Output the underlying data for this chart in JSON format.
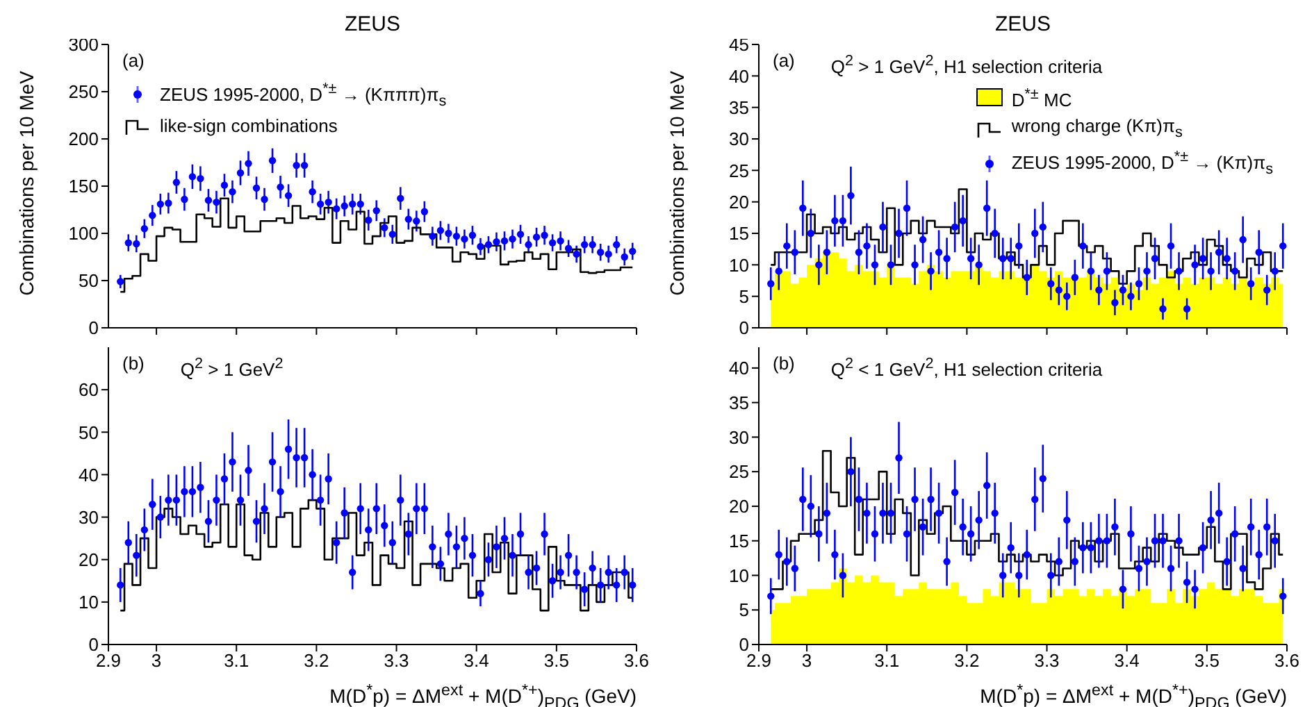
{
  "chart_data": [
    {
      "type": "scatter",
      "title": "ZEUS",
      "ylabel": "Combinations per 10 MeV",
      "annotations": [
        "(a)"
      ],
      "legend": "top left",
      "tick_labels": "y",
      "xlim": [
        2.94,
        3.6
      ],
      "xticks": [
        3,
        3.1,
        3.2,
        3.3,
        3.4,
        3.5,
        3.6
      ],
      "ylim": [
        0,
        300
      ],
      "yticks": [
        0,
        50,
        100,
        150,
        200,
        250,
        300
      ],
      "x": [
        2.955,
        2.965,
        2.975,
        2.985,
        2.995,
        3.005,
        3.015,
        3.025,
        3.035,
        3.045,
        3.055,
        3.065,
        3.075,
        3.085,
        3.095,
        3.105,
        3.115,
        3.125,
        3.135,
        3.145,
        3.155,
        3.165,
        3.175,
        3.185,
        3.195,
        3.205,
        3.215,
        3.225,
        3.235,
        3.245,
        3.255,
        3.265,
        3.275,
        3.285,
        3.295,
        3.305,
        3.315,
        3.325,
        3.335,
        3.345,
        3.355,
        3.365,
        3.375,
        3.385,
        3.395,
        3.405,
        3.415,
        3.425,
        3.435,
        3.445,
        3.455,
        3.465,
        3.475,
        3.485,
        3.495,
        3.505,
        3.515,
        3.525,
        3.535,
        3.545,
        3.555,
        3.565,
        3.575,
        3.585,
        3.595
      ],
      "series": [
        {
          "name": "ZEUS 1995-2000, D$^{*±}$ → (Kπππ)π$_{s}$",
          "marker": "circle",
          "color": "#0000ff",
          "values": [
            49,
            90,
            89,
            105,
            119,
            131,
            132,
            154,
            136,
            160,
            158,
            135,
            133,
            151,
            144,
            164,
            174,
            148,
            136,
            177,
            149,
            140,
            172,
            172,
            144,
            131,
            133,
            126,
            129,
            131,
            131,
            114,
            124,
            106,
            99,
            137,
            115,
            113,
            123,
            97,
            103,
            100,
            97,
            94,
            98,
            86,
            88,
            91,
            92,
            94,
            99,
            88,
            96,
            98,
            90,
            92,
            84,
            78,
            88,
            88,
            80,
            78,
            88,
            75,
            81
          ],
          "errors": [
            7,
            9,
            9,
            10,
            11,
            11,
            11,
            12,
            12,
            13,
            13,
            12,
            12,
            12,
            12,
            13,
            13,
            12,
            12,
            13,
            12,
            12,
            13,
            13,
            12,
            11,
            12,
            11,
            11,
            11,
            11,
            11,
            11,
            10,
            10,
            12,
            11,
            11,
            11,
            10,
            10,
            10,
            10,
            10,
            10,
            9,
            9,
            10,
            10,
            10,
            10,
            9,
            10,
            10,
            9,
            10,
            9,
            9,
            9,
            9,
            9,
            9,
            9,
            9,
            9
          ]
        },
        {
          "name": "like-sign combinations",
          "type": "step",
          "color": "#000000",
          "values": [
            38,
            52,
            55,
            78,
            71,
            97,
            106,
            104,
            91,
            91,
            120,
            116,
            107,
            137,
            106,
            118,
            102,
            102,
            113,
            113,
            116,
            111,
            129,
            116,
            118,
            115,
            127,
            90,
            113,
            104,
            123,
            89,
            97,
            111,
            118,
            90,
            92,
            106,
            99,
            99,
            85,
            85,
            70,
            80,
            78,
            73,
            87,
            87,
            67,
            70,
            71,
            80,
            73,
            78,
            62,
            80,
            80,
            83,
            59,
            58,
            59,
            61,
            61,
            64,
            64
          ]
        }
      ]
    },
    {
      "type": "scatter",
      "title": "ZEUS",
      "ylabel": "Combinations per 10 MeV",
      "annotations": [
        "(a)",
        "Q$^{2}$ > 1 GeV$^{2}$, H1 selection criteria"
      ],
      "legend": "top right",
      "tick_labels": "y",
      "xlim": [
        2.94,
        3.6
      ],
      "xticks": [
        3,
        3.1,
        3.2,
        3.3,
        3.4,
        3.5,
        3.6
      ],
      "ylim": [
        0,
        45
      ],
      "yticks": [
        0,
        5,
        10,
        15,
        20,
        25,
        30,
        35,
        40,
        45
      ],
      "x": [
        2.955,
        2.965,
        2.975,
        2.985,
        2.995,
        3.005,
        3.015,
        3.025,
        3.035,
        3.045,
        3.055,
        3.065,
        3.075,
        3.085,
        3.095,
        3.105,
        3.115,
        3.125,
        3.135,
        3.145,
        3.155,
        3.165,
        3.175,
        3.185,
        3.195,
        3.205,
        3.215,
        3.225,
        3.235,
        3.245,
        3.255,
        3.265,
        3.275,
        3.285,
        3.295,
        3.305,
        3.315,
        3.325,
        3.335,
        3.345,
        3.355,
        3.365,
        3.375,
        3.385,
        3.395,
        3.405,
        3.415,
        3.425,
        3.435,
        3.445,
        3.455,
        3.465,
        3.475,
        3.485,
        3.495,
        3.505,
        3.515,
        3.525,
        3.535,
        3.545,
        3.555,
        3.565,
        3.575,
        3.585,
        3.595
      ],
      "series": [
        {
          "name": "D$^{*±}$ MC",
          "type": "area",
          "color": "#ffff00",
          "values": [
            7,
            9,
            9,
            7,
            8,
            10,
            11,
            12,
            12,
            11,
            9,
            10,
            9,
            9,
            8,
            10,
            8,
            8,
            7,
            9,
            10,
            9,
            8,
            9,
            9,
            9,
            10,
            9,
            8,
            9,
            9,
            8,
            8,
            10,
            9,
            8,
            9,
            8,
            8,
            8,
            9,
            8,
            7,
            8,
            6,
            7,
            6,
            8,
            7,
            8,
            9,
            7,
            8,
            7,
            8,
            8,
            7,
            8,
            7,
            8,
            7,
            8,
            7,
            8,
            7
          ]
        },
        {
          "name": "wrong charge (Kπ)π$_{s}$",
          "type": "step",
          "color": "#000000",
          "values": [
            10,
            12,
            12,
            12,
            12,
            18,
            15,
            16,
            15,
            16,
            14,
            15,
            16,
            14,
            12,
            19,
            10,
            15,
            17,
            15,
            17,
            16,
            16,
            15,
            22,
            12,
            15,
            14,
            15,
            11,
            12,
            10,
            8,
            10,
            13,
            10,
            15,
            17,
            17,
            13,
            12,
            13,
            11,
            9,
            7,
            9,
            13,
            15,
            13,
            10,
            8,
            9,
            11,
            12,
            10,
            14,
            13,
            10,
            9,
            8,
            11,
            10,
            12,
            9,
            9
          ]
        },
        {
          "name": "ZEUS 1995-2000, D$^{*±}$ → (Kπ)π$_{s}$",
          "marker": "circle",
          "color": "#0000ff",
          "values": [
            7,
            9,
            13,
            12,
            19,
            15,
            10,
            12,
            17,
            17,
            21,
            12,
            13,
            10,
            16,
            10,
            15,
            19,
            10,
            14,
            9,
            12,
            11,
            16,
            17,
            11,
            10,
            19,
            15,
            11,
            11,
            13,
            8,
            15,
            16,
            7,
            6,
            5,
            8,
            13,
            9,
            6,
            9,
            4,
            6,
            5,
            7,
            9,
            11,
            3,
            13,
            9,
            3,
            10,
            11,
            9,
            12,
            11,
            9,
            14,
            7,
            12,
            6,
            9,
            13
          ],
          "errors": [
            2.6,
            3,
            3.6,
            3.5,
            4.4,
            3.9,
            3.2,
            3.5,
            4.1,
            4.1,
            4.6,
            3.5,
            3.6,
            3.2,
            4,
            3.2,
            3.9,
            4.4,
            3.2,
            3.7,
            3,
            3.5,
            3.3,
            4,
            4.1,
            3.3,
            3.2,
            4.4,
            3.9,
            3.3,
            3.3,
            3.6,
            2.8,
            3.9,
            4,
            2.6,
            2.4,
            2.2,
            2.8,
            3.6,
            3,
            2.4,
            3,
            2,
            2.4,
            2.2,
            2.6,
            3,
            3.3,
            1.7,
            3.6,
            3,
            1.7,
            3.2,
            3.3,
            3,
            3.5,
            3.3,
            3,
            3.7,
            2.6,
            3.5,
            2.4,
            3,
            3.6
          ]
        }
      ]
    },
    {
      "type": "scatter",
      "annotations": [
        "(b)",
        "Q$^{2}$ > 1 GeV$^{2}$"
      ],
      "xlabel": "M(D$^{*}$p) = ΔM$^{ext}$ + M(D$^{*+}$)$_{PDG}$ (GeV)",
      "xlim": [
        2.94,
        3.6
      ],
      "xticks": [
        {
          "value": 2.94,
          "label": "2.9"
        },
        3,
        3.1,
        3.2,
        3.3,
        3.4,
        3.5,
        3.6
      ],
      "ylim": [
        0,
        70
      ],
      "yticks": [
        0,
        10,
        20,
        30,
        40,
        50,
        60
      ],
      "x": [
        2.955,
        2.965,
        2.975,
        2.985,
        2.995,
        3.005,
        3.015,
        3.025,
        3.035,
        3.045,
        3.055,
        3.065,
        3.075,
        3.085,
        3.095,
        3.105,
        3.115,
        3.125,
        3.135,
        3.145,
        3.155,
        3.165,
        3.175,
        3.185,
        3.195,
        3.205,
        3.215,
        3.225,
        3.235,
        3.245,
        3.255,
        3.265,
        3.275,
        3.285,
        3.295,
        3.305,
        3.315,
        3.325,
        3.335,
        3.345,
        3.355,
        3.365,
        3.375,
        3.385,
        3.395,
        3.405,
        3.415,
        3.425,
        3.435,
        3.445,
        3.455,
        3.465,
        3.475,
        3.485,
        3.495,
        3.505,
        3.515,
        3.525,
        3.535,
        3.545,
        3.555,
        3.565,
        3.575,
        3.585,
        3.595
      ],
      "series": [
        {
          "type": "step",
          "color": "#000000",
          "values": [
            8,
            19,
            14,
            25,
            18,
            30,
            32,
            30,
            26,
            28,
            26,
            23,
            24,
            33,
            23,
            33,
            21,
            20,
            31,
            23,
            30,
            31,
            23,
            32,
            34,
            32,
            20,
            25,
            25,
            31,
            21,
            24,
            14,
            21,
            19,
            18,
            29,
            14,
            19,
            19,
            18,
            15,
            18,
            19,
            11,
            15,
            26,
            17,
            24,
            12,
            21,
            21,
            13,
            8,
            23,
            15,
            14,
            14,
            8,
            14,
            10,
            14,
            17,
            17,
            11
          ]
        },
        {
          "marker": "circle",
          "color": "#0000ff",
          "values": [
            14,
            24,
            21,
            27,
            33,
            30,
            34,
            34,
            36,
            36,
            37,
            29,
            34,
            39,
            43,
            34,
            41,
            29,
            32,
            43,
            36,
            46,
            44,
            44,
            40,
            34,
            39,
            24,
            31,
            17,
            32,
            27,
            32,
            28,
            24,
            34,
            26,
            32,
            32,
            23,
            19,
            26,
            23,
            25,
            21,
            12,
            20,
            23,
            25,
            21,
            26,
            17,
            18,
            26,
            15,
            17,
            21,
            17,
            13,
            18,
            14,
            17,
            14,
            17,
            14
          ],
          "errors": [
            4,
            5,
            5,
            5,
            6,
            5,
            6,
            6,
            6,
            6,
            6,
            5,
            6,
            6,
            7,
            6,
            6,
            5,
            6,
            7,
            6,
            7,
            7,
            7,
            6,
            6,
            6,
            5,
            6,
            4,
            6,
            5,
            6,
            5,
            5,
            6,
            5,
            6,
            6,
            5,
            4,
            5,
            5,
            5,
            5,
            3,
            4,
            5,
            5,
            5,
            5,
            4,
            4,
            5,
            4,
            4,
            5,
            4,
            4,
            4,
            4,
            4,
            4,
            4,
            4
          ]
        }
      ]
    },
    {
      "type": "scatter",
      "annotations": [
        "(b)",
        "Q$^{2}$ < 1 GeV$^{2}$, H1 selection criteria"
      ],
      "xlabel": "M(D$^{*}$p) = ΔM$^{ext}$ + M(D$^{*+}$)$_{PDG}$ (GeV)",
      "xlim": [
        2.94,
        3.6
      ],
      "xticks": [
        {
          "value": 2.94,
          "label": "2.9"
        },
        3,
        3.1,
        3.2,
        3.3,
        3.4,
        3.5,
        3.6
      ],
      "ylim": [
        0,
        43
      ],
      "yticks": [
        0,
        5,
        10,
        15,
        20,
        25,
        30,
        35,
        40
      ],
      "x": [
        2.955,
        2.965,
        2.975,
        2.985,
        2.995,
        3.005,
        3.015,
        3.025,
        3.035,
        3.045,
        3.055,
        3.065,
        3.075,
        3.085,
        3.095,
        3.105,
        3.115,
        3.125,
        3.135,
        3.145,
        3.155,
        3.165,
        3.175,
        3.185,
        3.195,
        3.205,
        3.215,
        3.225,
        3.235,
        3.245,
        3.255,
        3.265,
        3.275,
        3.285,
        3.295,
        3.305,
        3.315,
        3.325,
        3.335,
        3.345,
        3.355,
        3.365,
        3.375,
        3.385,
        3.395,
        3.405,
        3.415,
        3.425,
        3.435,
        3.445,
        3.455,
        3.465,
        3.475,
        3.485,
        3.495,
        3.505,
        3.515,
        3.525,
        3.535,
        3.545,
        3.555,
        3.565,
        3.575,
        3.585,
        3.595
      ],
      "series": [
        {
          "type": "area",
          "color": "#ffff00",
          "values": [
            5,
            6,
            6,
            7,
            7,
            8,
            8,
            8,
            9,
            11,
            9,
            10,
            9,
            10,
            9,
            9,
            7,
            8,
            8,
            9,
            8,
            8,
            8,
            9,
            7,
            6,
            6,
            8,
            7,
            9,
            9,
            8,
            8,
            6,
            6,
            8,
            7,
            8,
            8,
            7,
            8,
            7,
            8,
            7,
            8,
            7,
            8,
            8,
            6,
            6,
            8,
            6,
            8,
            7,
            8,
            9,
            8,
            8,
            7,
            8,
            8,
            7,
            6,
            6,
            8
          ]
        },
        {
          "type": "step",
          "color": "#000000",
          "values": [
            8,
            8,
            12,
            15,
            16,
            16,
            18,
            28,
            22,
            20,
            27,
            13,
            21,
            21,
            25,
            16,
            21,
            19,
            10,
            18,
            16,
            19,
            20,
            15,
            15,
            13,
            15,
            15,
            16,
            12,
            13,
            12,
            13,
            12,
            13,
            12,
            10,
            11,
            15,
            14,
            15,
            12,
            15,
            16,
            11,
            11,
            12,
            14,
            12,
            16,
            15,
            14,
            13,
            13,
            14,
            17,
            12,
            8,
            16,
            16,
            9,
            8,
            11,
            16,
            13
          ]
        },
        {
          "marker": "circle",
          "color": "#0000ff",
          "values": [
            7,
            13,
            12,
            11,
            21,
            20,
            16,
            19,
            13,
            10,
            25,
            21,
            19,
            16,
            19,
            19,
            27,
            16,
            21,
            17,
            21,
            19,
            12,
            22,
            17,
            16,
            18,
            23,
            19,
            10,
            14,
            10,
            13,
            21,
            24,
            10,
            12,
            18,
            12,
            14,
            14,
            15,
            15,
            17,
            8,
            16,
            11,
            12,
            15,
            15,
            11,
            15,
            9,
            8,
            14,
            18,
            19,
            12,
            16,
            11,
            17,
            13,
            17,
            15,
            7
          ],
          "errors": [
            2.6,
            3.6,
            3.5,
            3.3,
            4.6,
            4.5,
            4,
            4.4,
            3.6,
            3.2,
            5,
            4.6,
            4.4,
            4,
            4.4,
            4.4,
            5.2,
            4,
            4.6,
            4.1,
            4.6,
            4.4,
            3.5,
            4.7,
            4.1,
            4,
            4.2,
            4.8,
            4.4,
            3.2,
            3.7,
            3.2,
            3.6,
            4.6,
            4.9,
            3.2,
            3.5,
            4.2,
            3.5,
            3.7,
            3.7,
            3.9,
            3.9,
            4.1,
            2.8,
            4,
            3.3,
            3.5,
            3.9,
            3.9,
            3.3,
            3.9,
            3,
            2.8,
            3.7,
            4.2,
            4.4,
            3.5,
            4,
            3.3,
            4.1,
            3.6,
            4.1,
            3.9,
            2.6
          ]
        }
      ]
    }
  ]
}
